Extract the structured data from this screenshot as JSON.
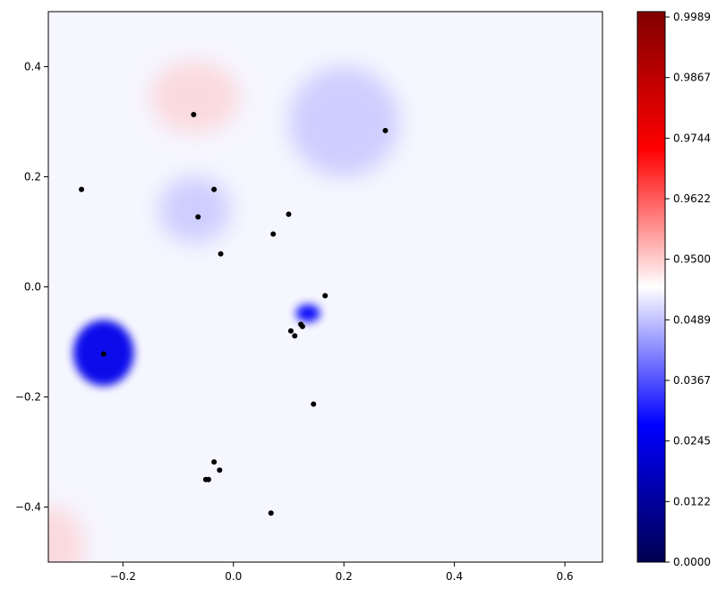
{
  "chart_data": {
    "type": "heatmap",
    "title": "",
    "xlabel": "",
    "ylabel": "",
    "xlim": [
      -0.335,
      0.668
    ],
    "ylim": [
      -0.5,
      0.5
    ],
    "x_ticks": [
      -0.2,
      0.0,
      0.2,
      0.4,
      0.6
    ],
    "x_tick_labels": [
      "−0.2",
      "0.0",
      "0.2",
      "0.4",
      "0.6"
    ],
    "y_ticks": [
      0.4,
      0.2,
      0.0,
      -0.2,
      -0.4
    ],
    "y_tick_labels": [
      "0.4",
      "0.2",
      "0.0",
      "−0.2",
      "−0.4"
    ],
    "grid": false,
    "colormap": "seismic",
    "colorbar": {
      "tick_labels": [
        "0.9989",
        "0.9867",
        "0.9744",
        "0.9622",
        "0.9500",
        "0.0489",
        "0.0367",
        "0.0245",
        "0.0122",
        "0.0000"
      ],
      "colors": [
        "#000050",
        "#0000ff",
        "#ffffff",
        "#ff0000",
        "#800000"
      ]
    },
    "field_blobs": [
      {
        "x": -0.235,
        "y": -0.12,
        "rx": 0.055,
        "ry": 0.06,
        "level": 0.0
      },
      {
        "x": 0.135,
        "y": -0.048,
        "rx": 0.022,
        "ry": 0.016,
        "level": 0.02
      },
      {
        "x": -0.07,
        "y": 0.14,
        "rx": 0.065,
        "ry": 0.06,
        "level": 0.045
      },
      {
        "x": -0.07,
        "y": 0.345,
        "rx": 0.08,
        "ry": 0.065,
        "level": 0.958
      },
      {
        "x": -0.33,
        "y": -0.47,
        "rx": 0.06,
        "ry": 0.07,
        "level": 0.956
      },
      {
        "x": 0.2,
        "y": 0.3,
        "rx": 0.1,
        "ry": 0.1,
        "level": 0.05
      }
    ],
    "points": [
      {
        "x": -0.072,
        "y": 0.313
      },
      {
        "x": 0.275,
        "y": 0.284
      },
      {
        "x": -0.275,
        "y": 0.177
      },
      {
        "x": -0.035,
        "y": 0.177
      },
      {
        "x": 0.1,
        "y": 0.132
      },
      {
        "x": -0.064,
        "y": 0.127
      },
      {
        "x": 0.072,
        "y": 0.096
      },
      {
        "x": -0.023,
        "y": 0.06
      },
      {
        "x": 0.166,
        "y": -0.016
      },
      {
        "x": 0.122,
        "y": -0.068
      },
      {
        "x": 0.125,
        "y": -0.072
      },
      {
        "x": 0.104,
        "y": -0.08
      },
      {
        "x": 0.111,
        "y": -0.089
      },
      {
        "x": -0.235,
        "y": -0.122
      },
      {
        "x": 0.145,
        "y": -0.213
      },
      {
        "x": -0.035,
        "y": -0.318
      },
      {
        "x": -0.025,
        "y": -0.333
      },
      {
        "x": -0.05,
        "y": -0.35
      },
      {
        "x": -0.045,
        "y": -0.35
      },
      {
        "x": 0.068,
        "y": -0.411
      }
    ]
  }
}
